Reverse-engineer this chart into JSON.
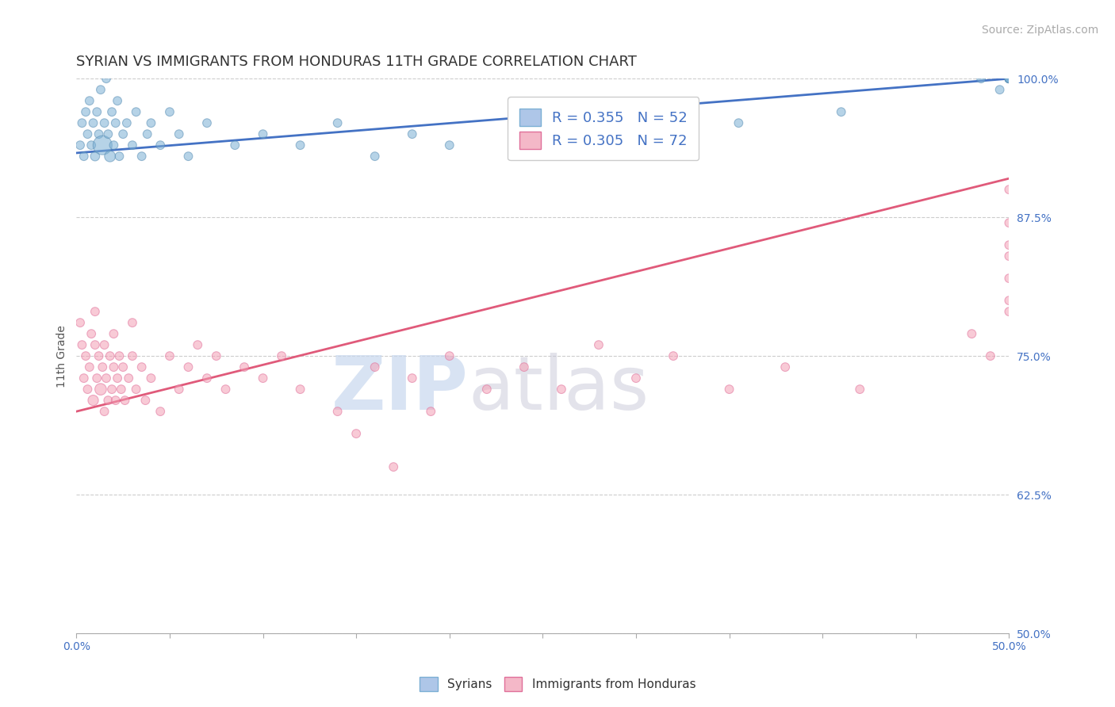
{
  "title": "SYRIAN VS IMMIGRANTS FROM HONDURAS 11TH GRADE CORRELATION CHART",
  "source_text": "Source: ZipAtlas.com",
  "ylabel": "11th Grade",
  "xlim": [
    0.0,
    50.0
  ],
  "ylim": [
    50.0,
    100.0
  ],
  "xticks": [
    0.0,
    5.0,
    10.0,
    15.0,
    20.0,
    25.0,
    30.0,
    35.0,
    40.0,
    45.0,
    50.0
  ],
  "yticks": [
    50.0,
    62.5,
    75.0,
    87.5,
    100.0
  ],
  "xtick_labels": [
    "0.0%",
    "",
    "",
    "",
    "",
    "",
    "",
    "",
    "",
    "",
    "50.0%"
  ],
  "ytick_labels": [
    "50.0%",
    "62.5%",
    "75.0%",
    "87.5%",
    "100.0%"
  ],
  "watermark_zip": "ZIP",
  "watermark_atlas": "atlas",
  "blue_scatter_x": [
    0.2,
    0.3,
    0.4,
    0.5,
    0.6,
    0.7,
    0.8,
    0.9,
    1.0,
    1.1,
    1.2,
    1.3,
    1.4,
    1.5,
    1.6,
    1.7,
    1.8,
    1.9,
    2.0,
    2.1,
    2.2,
    2.3,
    2.5,
    2.7,
    3.0,
    3.2,
    3.5,
    3.8,
    4.0,
    4.5,
    5.0,
    5.5,
    6.0,
    7.0,
    8.5,
    10.0,
    12.0,
    14.0,
    16.0,
    18.0,
    20.0,
    25.0,
    30.0,
    35.5,
    41.0,
    48.5,
    49.5,
    50.0,
    50.0,
    50.0,
    50.0,
    50.0
  ],
  "blue_scatter_y": [
    94,
    96,
    93,
    97,
    95,
    98,
    94,
    96,
    93,
    97,
    95,
    99,
    94,
    96,
    100,
    95,
    93,
    97,
    94,
    96,
    98,
    93,
    95,
    96,
    94,
    97,
    93,
    95,
    96,
    94,
    97,
    95,
    93,
    96,
    94,
    95,
    94,
    96,
    93,
    95,
    94,
    96,
    95,
    96,
    97,
    100,
    99,
    100,
    100,
    100,
    100,
    100
  ],
  "blue_scatter_sizes": [
    60,
    60,
    60,
    60,
    60,
    60,
    60,
    60,
    70,
    60,
    60,
    60,
    300,
    60,
    60,
    60,
    100,
    60,
    60,
    60,
    60,
    60,
    60,
    60,
    60,
    60,
    60,
    60,
    60,
    60,
    60,
    60,
    60,
    60,
    60,
    60,
    60,
    60,
    60,
    60,
    60,
    60,
    60,
    60,
    60,
    60,
    60,
    60,
    60,
    60,
    60,
    60
  ],
  "pink_scatter_x": [
    0.2,
    0.3,
    0.4,
    0.5,
    0.6,
    0.7,
    0.8,
    0.9,
    1.0,
    1.0,
    1.1,
    1.2,
    1.3,
    1.4,
    1.5,
    1.5,
    1.6,
    1.7,
    1.8,
    1.9,
    2.0,
    2.0,
    2.1,
    2.2,
    2.3,
    2.4,
    2.5,
    2.6,
    2.8,
    3.0,
    3.0,
    3.2,
    3.5,
    3.7,
    4.0,
    4.5,
    5.0,
    5.5,
    6.0,
    6.5,
    7.0,
    7.5,
    8.0,
    9.0,
    10.0,
    11.0,
    12.0,
    14.0,
    15.0,
    16.0,
    17.0,
    18.0,
    19.0,
    20.0,
    22.0,
    24.0,
    26.0,
    28.0,
    30.0,
    32.0,
    35.0,
    38.0,
    42.0,
    48.0,
    49.0,
    50.0,
    50.0,
    50.0,
    50.0,
    50.0,
    50.0,
    50.0
  ],
  "pink_scatter_y": [
    78,
    76,
    73,
    75,
    72,
    74,
    77,
    71,
    76,
    79,
    73,
    75,
    72,
    74,
    70,
    76,
    73,
    71,
    75,
    72,
    74,
    77,
    71,
    73,
    75,
    72,
    74,
    71,
    73,
    75,
    78,
    72,
    74,
    71,
    73,
    70,
    75,
    72,
    74,
    76,
    73,
    75,
    72,
    74,
    73,
    75,
    72,
    70,
    68,
    74,
    65,
    73,
    70,
    75,
    72,
    74,
    72,
    76,
    73,
    75,
    72,
    74,
    72,
    77,
    75,
    79,
    80,
    82,
    84,
    85,
    87,
    90
  ],
  "pink_scatter_sizes": [
    60,
    60,
    60,
    60,
    60,
    60,
    60,
    90,
    60,
    60,
    60,
    60,
    110,
    60,
    60,
    60,
    60,
    60,
    60,
    60,
    60,
    60,
    60,
    60,
    60,
    60,
    60,
    60,
    60,
    60,
    60,
    60,
    60,
    60,
    60,
    60,
    60,
    60,
    60,
    60,
    60,
    60,
    60,
    60,
    60,
    60,
    60,
    60,
    60,
    60,
    60,
    60,
    60,
    60,
    60,
    60,
    60,
    60,
    60,
    60,
    60,
    60,
    60,
    60,
    60,
    60,
    60,
    60,
    60,
    60,
    60,
    60
  ],
  "blue_trend_x0": 0.0,
  "blue_trend_y0": 93.3,
  "blue_trend_x1": 50.0,
  "blue_trend_y1": 100.0,
  "pink_trend_x0": 0.0,
  "pink_trend_y0": 70.0,
  "pink_trend_x1": 50.0,
  "pink_trend_y1": 91.0,
  "blue_color": "#7bafd4",
  "blue_edge": "#5a8fb5",
  "blue_line_color": "#4472c4",
  "pink_color": "#f4a0b5",
  "pink_edge": "#e0709a",
  "pink_line_color": "#e05a7a",
  "background_color": "#ffffff",
  "grid_color": "#cccccc",
  "title_fontsize": 13,
  "tick_fontsize": 10,
  "source_fontsize": 10,
  "tick_color": "#4472c4",
  "title_color": "#333333",
  "ylabel_color": "#555555"
}
